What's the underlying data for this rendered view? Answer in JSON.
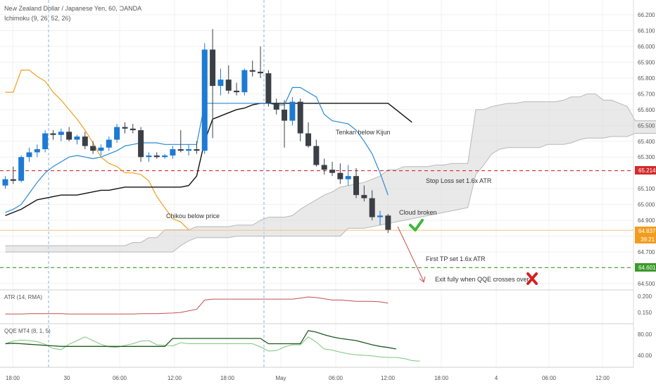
{
  "header": {
    "title": "New Zealand Dollar / Japanese Yen, 60, OANDA",
    "indicator": "Ichimoku (9, 26, 52, 26)"
  },
  "colors": {
    "bull": "#1e7ad3",
    "bear": "#3b3f46",
    "tenkan": "#2a8ad3",
    "kijun": "#111111",
    "chikou": "#f0a020",
    "cloud": "#d7d7d7",
    "stop": "#d42a2a",
    "tp": "#3c9a2a",
    "atr": "#c05050",
    "qqe_fast": "#1e5a1e",
    "qqe_slow": "#7cc67c",
    "arrow": "#c85050"
  },
  "time_axis": {
    "labels": [
      "18:00",
      "30",
      "06:00",
      "12:00",
      "18:00",
      "May",
      "06:00",
      "12:00",
      "18:00",
      "4",
      "06:00",
      "12:00"
    ],
    "session_markers": [
      "Apr 29 21:00",
      "Apr 30 21:00"
    ]
  },
  "price_axis": {
    "ticks": [
      "66.200",
      "66.100",
      "66.000",
      "65.900",
      "65.800",
      "65.700",
      "65.600",
      "65.500",
      "65.400",
      "65.300",
      "65.100",
      "65.000",
      "64.900",
      "64.800",
      "64.700",
      "64.600",
      "64.500"
    ]
  },
  "price_badges": {
    "stop": "65.214",
    "last": "64.837",
    "countdown": "39:21",
    "tp": "64.601"
  },
  "annotations": {
    "tenkan": "Tenkan below Kijun",
    "stop": "Stop Loss set 1.6x ATR",
    "chikou": "Chikou below price",
    "cloud": "Cloud broken",
    "tp": "First TP set 1.6x ATR",
    "exit": "Exit fully when QQE crosses over"
  },
  "atr_panel": {
    "label": "ATR (14, RMA)",
    "ticks": [
      "0.200",
      "0.150"
    ]
  },
  "qqe_panel": {
    "label": "QQE MT4 (8, 1, 5)",
    "ticks": [
      "80.00",
      "40.00"
    ]
  },
  "chart_data": {
    "type": "candlestick",
    "symbol": "NZDJPY",
    "interval": "60",
    "ylim": [
      64.45,
      66.25
    ],
    "candles": [
      {
        "o": 65.12,
        "h": 65.18,
        "l": 65.1,
        "c": 65.16
      },
      {
        "o": 65.16,
        "h": 65.24,
        "l": 65.13,
        "c": 65.15
      },
      {
        "o": 65.15,
        "h": 65.31,
        "l": 65.14,
        "c": 65.3
      },
      {
        "o": 65.3,
        "h": 65.36,
        "l": 65.27,
        "c": 65.33
      },
      {
        "o": 65.33,
        "h": 65.38,
        "l": 65.3,
        "c": 65.35
      },
      {
        "o": 65.35,
        "h": 65.47,
        "l": 65.33,
        "c": 65.45
      },
      {
        "o": 65.45,
        "h": 65.47,
        "l": 65.41,
        "c": 65.44
      },
      {
        "o": 65.44,
        "h": 65.48,
        "l": 65.4,
        "c": 65.46
      },
      {
        "o": 65.46,
        "h": 65.49,
        "l": 65.4,
        "c": 65.41
      },
      {
        "o": 65.41,
        "h": 65.44,
        "l": 65.38,
        "c": 65.43
      },
      {
        "o": 65.43,
        "h": 65.46,
        "l": 65.35,
        "c": 65.37
      },
      {
        "o": 65.37,
        "h": 65.4,
        "l": 65.32,
        "c": 65.34
      },
      {
        "o": 65.34,
        "h": 65.38,
        "l": 65.31,
        "c": 65.36
      },
      {
        "o": 65.36,
        "h": 65.43,
        "l": 65.34,
        "c": 65.41
      },
      {
        "o": 65.41,
        "h": 65.51,
        "l": 65.39,
        "c": 65.49
      },
      {
        "o": 65.49,
        "h": 65.52,
        "l": 65.45,
        "c": 65.48
      },
      {
        "o": 65.48,
        "h": 65.51,
        "l": 65.45,
        "c": 65.47
      },
      {
        "o": 65.47,
        "h": 65.49,
        "l": 65.27,
        "c": 65.3
      },
      {
        "o": 65.3,
        "h": 65.33,
        "l": 65.27,
        "c": 65.31
      },
      {
        "o": 65.31,
        "h": 65.33,
        "l": 65.29,
        "c": 65.3
      },
      {
        "o": 65.3,
        "h": 65.32,
        "l": 65.29,
        "c": 65.31
      },
      {
        "o": 65.31,
        "h": 65.37,
        "l": 65.29,
        "c": 65.35
      },
      {
        "o": 65.35,
        "h": 65.47,
        "l": 65.33,
        "c": 65.34
      },
      {
        "o": 65.34,
        "h": 65.38,
        "l": 65.31,
        "c": 65.35
      },
      {
        "o": 65.35,
        "h": 65.4,
        "l": 65.32,
        "c": 65.34
      },
      {
        "o": 65.34,
        "h": 66.02,
        "l": 65.32,
        "c": 65.98
      },
      {
        "o": 65.98,
        "h": 66.11,
        "l": 65.42,
        "c": 65.75
      },
      {
        "o": 65.75,
        "h": 65.86,
        "l": 65.69,
        "c": 65.79
      },
      {
        "o": 65.79,
        "h": 65.88,
        "l": 65.7,
        "c": 65.72
      },
      {
        "o": 65.72,
        "h": 65.77,
        "l": 65.69,
        "c": 65.71
      },
      {
        "o": 65.71,
        "h": 65.86,
        "l": 65.69,
        "c": 65.85
      },
      {
        "o": 65.85,
        "h": 65.91,
        "l": 65.81,
        "c": 65.84
      },
      {
        "o": 65.84,
        "h": 66.0,
        "l": 65.8,
        "c": 65.83
      },
      {
        "o": 65.83,
        "h": 65.85,
        "l": 65.62,
        "c": 65.64
      },
      {
        "o": 65.64,
        "h": 65.67,
        "l": 65.57,
        "c": 65.6
      },
      {
        "o": 65.6,
        "h": 65.66,
        "l": 65.36,
        "c": 65.53
      },
      {
        "o": 65.53,
        "h": 65.68,
        "l": 65.5,
        "c": 65.65
      },
      {
        "o": 65.65,
        "h": 65.67,
        "l": 65.4,
        "c": 65.45
      },
      {
        "o": 65.45,
        "h": 65.52,
        "l": 65.36,
        "c": 65.37
      },
      {
        "o": 65.37,
        "h": 65.41,
        "l": 65.24,
        "c": 65.25
      },
      {
        "o": 65.25,
        "h": 65.29,
        "l": 65.19,
        "c": 65.22
      },
      {
        "o": 65.22,
        "h": 65.27,
        "l": 65.18,
        "c": 65.2
      },
      {
        "o": 65.2,
        "h": 65.26,
        "l": 65.13,
        "c": 65.16
      },
      {
        "o": 65.16,
        "h": 65.25,
        "l": 65.12,
        "c": 65.18
      },
      {
        "o": 65.18,
        "h": 65.23,
        "l": 65.04,
        "c": 65.06
      },
      {
        "o": 65.06,
        "h": 65.12,
        "l": 65.02,
        "c": 65.04
      },
      {
        "o": 65.04,
        "h": 65.09,
        "l": 64.9,
        "c": 64.92
      },
      {
        "o": 64.92,
        "h": 64.96,
        "l": 64.87,
        "c": 64.93
      },
      {
        "o": 64.93,
        "h": 64.94,
        "l": 64.82,
        "c": 64.84
      }
    ],
    "tenkan": [
      64.95,
      64.97,
      65.0,
      65.07,
      65.14,
      65.2,
      65.24,
      65.27,
      65.3,
      65.31,
      65.3,
      65.29,
      65.3,
      65.32,
      65.34,
      65.37,
      65.38,
      65.39,
      65.39,
      65.39,
      65.38,
      65.38,
      65.38,
      65.38,
      65.38,
      65.64,
      65.64,
      65.64,
      65.64,
      65.64,
      65.64,
      65.64,
      65.64,
      65.64,
      65.63,
      65.63,
      65.74,
      65.74,
      65.71,
      65.68,
      65.57,
      65.53,
      65.52,
      65.51,
      65.47,
      65.4,
      65.32,
      65.2,
      65.06
    ],
    "kijun": [
      64.93,
      64.95,
      64.97,
      65.0,
      65.03,
      65.04,
      65.05,
      65.06,
      65.06,
      65.06,
      65.07,
      65.08,
      65.09,
      65.09,
      65.1,
      65.11,
      65.11,
      65.11,
      65.11,
      65.11,
      65.11,
      65.11,
      65.11,
      65.12,
      65.18,
      65.4,
      65.54,
      65.56,
      65.58,
      65.6,
      65.61,
      65.63,
      65.64,
      65.64,
      65.64,
      65.64,
      65.64,
      65.64,
      65.64,
      65.64,
      65.64,
      65.64,
      65.64,
      65.64,
      65.64,
      65.64,
      65.64,
      65.64,
      65.64,
      65.6,
      65.56,
      65.52
    ],
    "chikou": [
      65.71,
      65.71,
      65.85,
      65.85,
      65.81,
      65.78,
      65.71,
      65.66,
      65.6,
      65.54,
      65.47,
      65.39,
      65.3,
      65.26,
      65.24,
      65.2,
      65.2,
      65.19,
      65.15,
      65.05,
      64.98,
      64.91,
      64.89,
      64.84
    ],
    "cloud": {
      "upper": [
        64.74,
        64.74,
        64.74,
        64.74,
        64.74,
        64.74,
        64.74,
        64.74,
        64.74,
        64.74,
        64.74,
        64.74,
        64.74,
        64.74,
        64.74,
        64.74,
        64.76,
        64.76,
        64.79,
        64.79,
        64.84,
        64.84,
        64.84,
        64.84,
        64.86,
        64.86,
        64.86,
        64.86,
        64.86,
        64.87,
        64.87,
        64.87,
        64.9,
        64.92,
        64.92,
        64.92,
        64.93,
        64.97,
        65.0,
        65.03,
        65.06,
        65.08,
        65.11,
        65.12,
        65.13,
        65.14,
        65.16,
        65.18,
        65.22,
        65.22,
        65.24,
        65.24,
        65.24,
        65.24,
        65.25,
        65.25,
        65.26,
        65.26,
        65.26,
        65.6,
        65.6,
        65.62,
        65.63,
        65.64,
        65.64,
        65.65,
        65.65,
        65.65,
        65.65,
        65.65,
        65.66,
        65.68,
        65.68,
        65.7,
        65.7,
        65.66,
        65.66,
        65.64,
        65.62,
        65.53,
        65.53,
        65.53,
        65.53,
        65.53,
        65.5,
        65.47,
        65.41,
        65.41,
        65.41,
        65.41
      ],
      "lower": [
        64.7,
        64.7,
        64.7,
        64.7,
        64.7,
        64.7,
        64.7,
        64.7,
        64.7,
        64.7,
        64.7,
        64.7,
        64.7,
        64.7,
        64.7,
        64.7,
        64.7,
        64.7,
        64.7,
        64.7,
        64.7,
        64.7,
        64.74,
        64.77,
        64.79,
        64.79,
        64.79,
        64.79,
        64.79,
        64.8,
        64.8,
        64.8,
        64.8,
        64.8,
        64.8,
        64.8,
        64.8,
        64.8,
        64.8,
        64.8,
        64.8,
        64.8,
        64.8,
        64.85,
        64.85,
        64.85,
        64.86,
        64.87,
        64.88,
        64.89,
        64.9,
        64.91,
        64.92,
        64.93,
        64.94,
        64.95,
        64.96,
        64.97,
        64.98,
        65.19,
        65.25,
        65.32,
        65.35,
        65.36,
        65.36,
        65.36,
        65.36,
        65.36,
        65.38,
        65.38,
        65.38,
        65.39,
        65.41,
        65.42,
        65.42,
        65.42,
        65.43,
        65.43,
        65.43,
        65.45,
        65.45,
        65.45,
        65.45,
        65.41,
        65.38,
        65.38,
        65.38,
        65.38,
        65.38,
        65.38
      ]
    },
    "stop_loss": 65.214,
    "take_profit": 64.601,
    "last_price": 64.837,
    "atr": [
      0.145,
      0.145,
      0.145,
      0.146,
      0.146,
      0.146,
      0.146,
      0.146,
      0.145,
      0.145,
      0.145,
      0.145,
      0.145,
      0.145,
      0.145,
      0.145,
      0.145,
      0.146,
      0.146,
      0.146,
      0.147,
      0.148,
      0.15,
      0.155,
      0.16,
      0.19,
      0.193,
      0.193,
      0.193,
      0.193,
      0.193,
      0.193,
      0.193,
      0.193,
      0.193,
      0.193,
      0.193,
      0.196,
      0.2,
      0.198,
      0.194,
      0.19,
      0.19,
      0.188,
      0.186,
      0.186,
      0.186,
      0.184,
      0.18
    ],
    "qqe_fast": [
      62,
      63,
      62,
      61,
      60,
      59,
      58,
      57,
      57,
      57,
      57,
      57,
      57,
      57,
      57,
      57,
      57,
      57,
      57,
      57,
      57,
      72,
      72,
      72,
      72,
      72,
      72,
      72,
      72,
      72,
      72,
      72,
      72,
      62,
      62,
      62,
      62,
      62,
      87,
      84,
      79,
      75,
      72,
      70,
      68,
      64,
      60,
      57,
      55,
      52
    ],
    "qqe_slow": [
      62,
      67,
      69,
      68,
      66,
      61,
      53,
      51,
      61,
      68,
      75,
      68,
      61,
      56,
      55,
      59,
      62,
      67,
      68,
      60,
      59,
      58,
      64,
      62,
      62,
      62,
      62,
      62,
      62,
      62,
      62,
      62,
      56,
      48,
      49,
      56,
      60,
      60,
      75,
      65,
      52,
      50,
      46,
      43,
      41,
      40,
      39,
      37,
      36,
      36,
      34,
      30,
      29
    ]
  }
}
